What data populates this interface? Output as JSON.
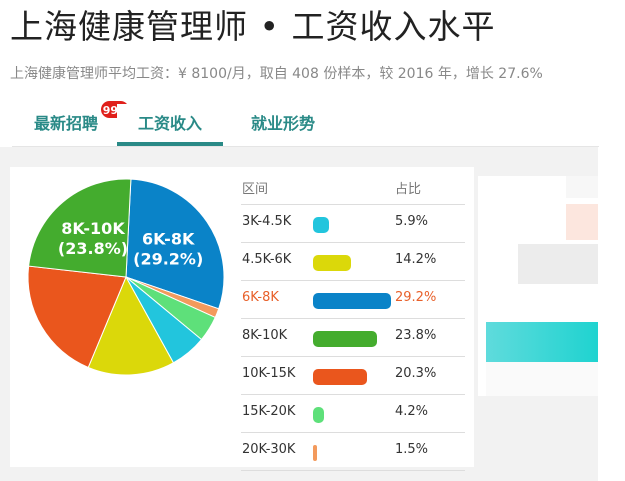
{
  "header": {
    "title": "上海健康管理师 • 工资收入水平",
    "subtitle": "上海健康管理师平均工资：¥ 8100/月，取自 408 份样本，较 2016 年，增长 27.6%"
  },
  "tabs": [
    {
      "label": "最新招聘",
      "badge": "99+"
    },
    {
      "label": "工资收入",
      "active": true
    },
    {
      "label": "就业形势"
    }
  ],
  "table": {
    "col_range": "区间",
    "col_pct": "占比"
  },
  "chart_data": {
    "type": "pie",
    "slices": [
      {
        "label": "3K-4.5K",
        "value": 5.9,
        "color": "#22c5dd"
      },
      {
        "label": "4.5K-6K",
        "value": 14.2,
        "color": "#dbd80a"
      },
      {
        "label": "6K-8K",
        "value": 29.2,
        "color": "#0a83c8"
      },
      {
        "label": "8K-10K",
        "value": 23.8,
        "color": "#44ac2e"
      },
      {
        "label": "10K-15K",
        "value": 20.3,
        "color": "#ea561d"
      },
      {
        "label": "15K-20K",
        "value": 4.2,
        "color": "#5ee07a"
      },
      {
        "label": "20K-30K",
        "value": 1.5,
        "color": "#f39a5c"
      }
    ],
    "highlight": "6K-8K",
    "pie_labels": [
      {
        "slice": "6K-8K",
        "name": "6K-8K",
        "pct": "(29.2%)"
      },
      {
        "slice": "8K-10K",
        "name": "8K-10K",
        "pct": "(23.8%)"
      }
    ]
  }
}
